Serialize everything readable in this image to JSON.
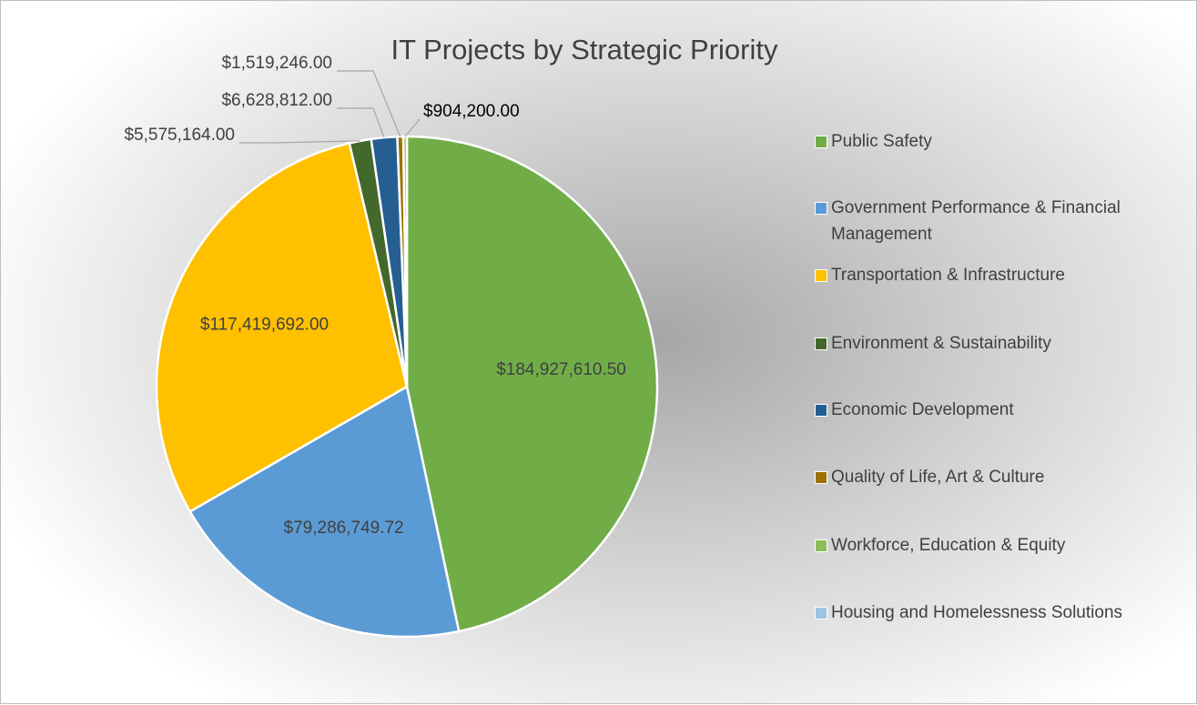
{
  "chart_data": {
    "type": "pie",
    "title": "IT Projects by Strategic Priority",
    "categories": [
      "Public Safety",
      "Government Performance & Financial Management",
      "Transportation & Infrastructure",
      "Environment & Sustainability",
      "Economic Development",
      "Quality of Life, Art & Culture",
      "Workforce, Education & Equity",
      "Housing and Homelessness Solutions"
    ],
    "values": [
      184927610.5,
      79286749.72,
      117419692.0,
      5575164.0,
      6628812.0,
      1519246.0,
      904200.0,
      null
    ],
    "value_labels": [
      "$184,927,610.50",
      "$79,286,749.72",
      "$117,419,692.00",
      "$5,575,164.00",
      "$6,628,812.00",
      "$1,519,246.00",
      "$904,200.00",
      null
    ],
    "colors": [
      "#70ad47",
      "#5b9bd5",
      "#ffc000",
      "#43682b",
      "#255e91",
      "#9e7000",
      "#8fbc5a",
      "#9dc3e6"
    ],
    "legend": "right"
  }
}
